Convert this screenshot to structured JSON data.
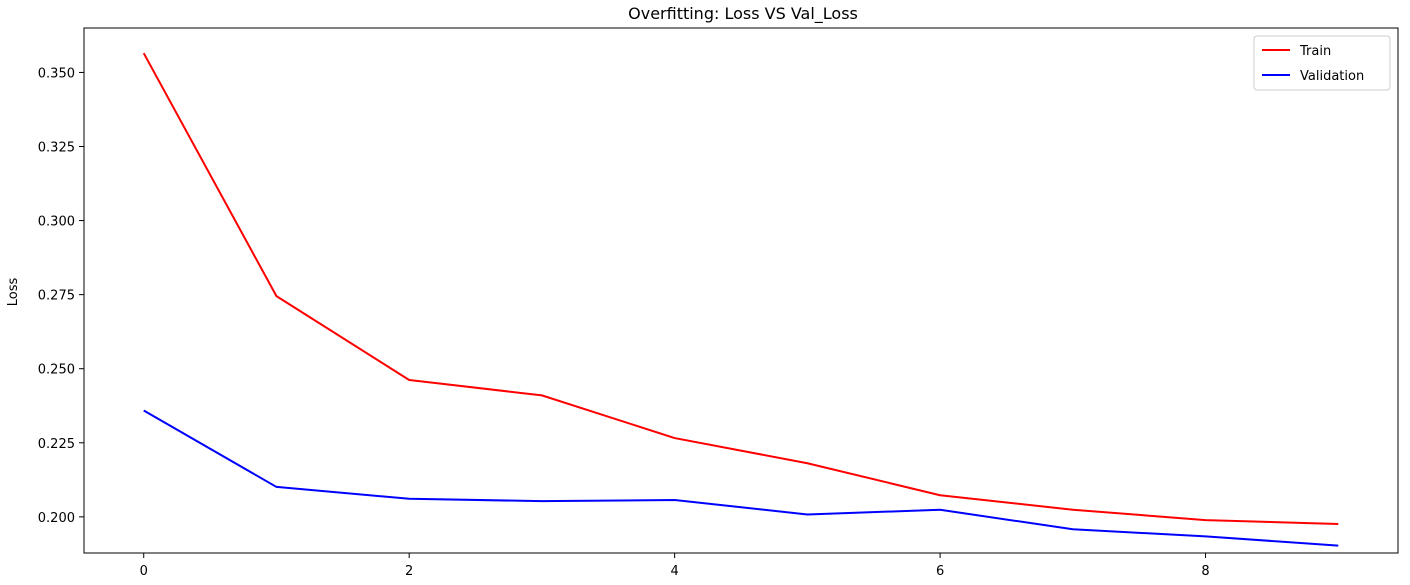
{
  "chart_data": {
    "type": "line",
    "title": "Overfitting: Loss VS Val_Loss",
    "xlabel": "",
    "ylabel": "Loss",
    "x": [
      0,
      1,
      2,
      3,
      4,
      5,
      6,
      7,
      8,
      9
    ],
    "xlim": [
      -0.45,
      9.45
    ],
    "ylim": [
      0.1878,
      0.365
    ],
    "x_ticks": [
      0,
      2,
      4,
      6,
      8
    ],
    "x_tick_labels": [
      "0",
      "2",
      "4",
      "6",
      "8"
    ],
    "y_ticks": [
      0.2,
      0.225,
      0.25,
      0.275,
      0.3,
      0.325,
      0.35
    ],
    "y_tick_labels": [
      "0.200",
      "0.225",
      "0.250",
      "0.275",
      "0.300",
      "0.325",
      "0.350"
    ],
    "grid": false,
    "legend_position": "top-right",
    "series": [
      {
        "name": "Train",
        "color": "#ff0000",
        "values": [
          0.3565,
          0.2745,
          0.2462,
          0.241,
          0.2266,
          0.2181,
          0.2073,
          0.2024,
          0.1989,
          0.1976
        ]
      },
      {
        "name": "Validation",
        "color": "#0000ff",
        "values": [
          0.2359,
          0.2101,
          0.2061,
          0.2053,
          0.2057,
          0.2008,
          0.2024,
          0.1958,
          0.1934,
          0.1903
        ]
      }
    ]
  }
}
